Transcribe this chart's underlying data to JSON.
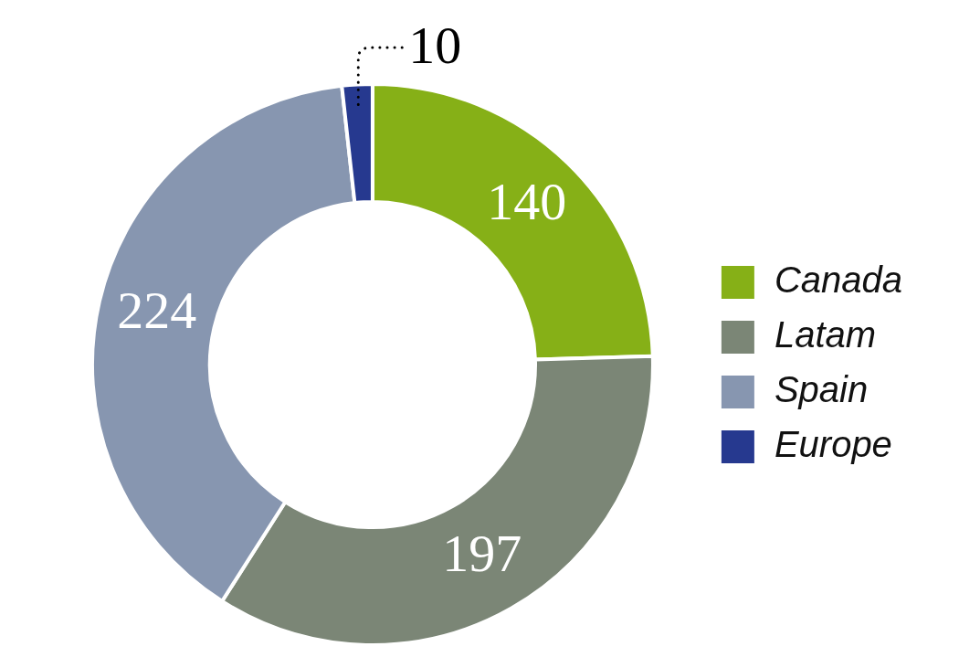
{
  "chart_data": {
    "type": "donut",
    "categories": [
      "Canada",
      "Latam",
      "Spain",
      "Europe"
    ],
    "values": [
      140,
      197,
      224,
      10
    ],
    "colors": [
      "#86b017",
      "#7b8676",
      "#8796b0",
      "#26398f"
    ],
    "data_labels": true,
    "legend": "right"
  }
}
